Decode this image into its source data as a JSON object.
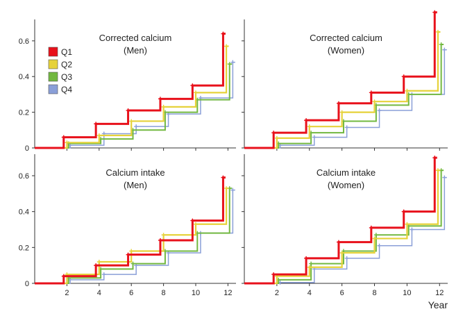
{
  "figure": {
    "xlabel": "Year",
    "legend": [
      {
        "name": "Q1",
        "color": "#e8111b"
      },
      {
        "name": "Q2",
        "color": "#e6d23a"
      },
      {
        "name": "Q3",
        "color": "#72b840"
      },
      {
        "name": "Q4",
        "color": "#8a9fd8"
      }
    ]
  },
  "chart_data": [
    {
      "type": "line",
      "step": true,
      "title": [
        "Corrected calcium",
        "(Men)"
      ],
      "xlabel": "",
      "ylabel": "",
      "xlim": [
        0,
        12.5
      ],
      "ylim": [
        0,
        0.72
      ],
      "xticks": [
        2,
        4,
        6,
        8,
        10,
        12
      ],
      "yticks": [
        0,
        0.2,
        0.4,
        0.6
      ],
      "ytick_labels": [
        "0",
        "0.2",
        "0.4",
        "0.6"
      ],
      "series": [
        {
          "name": "Q1",
          "x": [
            0,
            1.8,
            3.8,
            5.8,
            7.8,
            9.8,
            11.7
          ],
          "y": [
            0,
            0.06,
            0.135,
            0.21,
            0.275,
            0.35,
            0.64
          ]
        },
        {
          "name": "Q2",
          "x": [
            0,
            2.0,
            4.0,
            6.0,
            8.0,
            10.0,
            11.9
          ],
          "y": [
            0,
            0.03,
            0.07,
            0.15,
            0.23,
            0.31,
            0.57
          ]
        },
        {
          "name": "Q3",
          "x": [
            0,
            2.1,
            4.1,
            6.1,
            8.1,
            10.1,
            12.1
          ],
          "y": [
            0,
            0.025,
            0.05,
            0.1,
            0.2,
            0.27,
            0.47
          ]
        },
        {
          "name": "Q4",
          "x": [
            0,
            2.2,
            4.3,
            6.3,
            8.3,
            10.3,
            12.3
          ],
          "y": [
            0,
            0.015,
            0.08,
            0.12,
            0.19,
            0.28,
            0.48
          ]
        }
      ]
    },
    {
      "type": "line",
      "step": true,
      "title": [
        "Corrected calcium",
        "(Women)"
      ],
      "xlabel": "",
      "ylabel": "",
      "xlim": [
        0,
        12.5
      ],
      "ylim": [
        0,
        0.72
      ],
      "xticks": [
        2,
        4,
        6,
        8,
        10,
        12
      ],
      "yticks": [
        0,
        0.2,
        0.4,
        0.6
      ],
      "ytick_labels": [],
      "series": [
        {
          "name": "Q1",
          "x": [
            0,
            1.8,
            3.8,
            5.8,
            7.8,
            9.8,
            11.7
          ],
          "y": [
            0,
            0.085,
            0.155,
            0.25,
            0.31,
            0.4,
            0.76
          ]
        },
        {
          "name": "Q2",
          "x": [
            0,
            2.0,
            4.0,
            6.0,
            8.0,
            10.0,
            11.9
          ],
          "y": [
            0,
            0.055,
            0.12,
            0.2,
            0.26,
            0.32,
            0.65
          ]
        },
        {
          "name": "Q3",
          "x": [
            0,
            2.1,
            4.1,
            6.1,
            8.1,
            10.1,
            12.1
          ],
          "y": [
            0,
            0.025,
            0.085,
            0.15,
            0.24,
            0.3,
            0.58
          ]
        },
        {
          "name": "Q4",
          "x": [
            0,
            2.2,
            4.3,
            6.3,
            8.3,
            10.3,
            12.3
          ],
          "y": [
            0,
            0.015,
            0.06,
            0.115,
            0.21,
            0.3,
            0.55
          ]
        }
      ]
    },
    {
      "type": "line",
      "step": true,
      "title": [
        "Calcium intake",
        "(Men)"
      ],
      "xlabel": "",
      "ylabel": "",
      "xlim": [
        0,
        12.5
      ],
      "ylim": [
        0,
        0.72
      ],
      "xticks": [
        2,
        4,
        6,
        8,
        10,
        12
      ],
      "xtick_labels": [
        "2",
        "4",
        "6",
        "8",
        "10",
        "12"
      ],
      "yticks": [
        0,
        0.2,
        0.4,
        0.6
      ],
      "ytick_labels": [
        "0",
        "0.2",
        "0.4",
        "0.6"
      ],
      "series": [
        {
          "name": "Q1",
          "x": [
            0,
            1.8,
            3.8,
            5.8,
            7.8,
            9.8,
            11.7
          ],
          "y": [
            0,
            0.04,
            0.1,
            0.16,
            0.24,
            0.35,
            0.59
          ]
        },
        {
          "name": "Q2",
          "x": [
            0,
            2.0,
            4.0,
            6.0,
            8.0,
            10.0,
            11.9
          ],
          "y": [
            0,
            0.05,
            0.12,
            0.18,
            0.27,
            0.33,
            0.53
          ]
        },
        {
          "name": "Q3",
          "x": [
            0,
            2.1,
            4.1,
            6.1,
            8.1,
            10.1,
            12.1
          ],
          "y": [
            0,
            0.03,
            0.08,
            0.11,
            0.18,
            0.28,
            0.53
          ]
        },
        {
          "name": "Q4",
          "x": [
            0,
            2.2,
            4.3,
            6.3,
            8.3,
            10.3,
            12.3
          ],
          "y": [
            0,
            0.02,
            0.05,
            0.1,
            0.17,
            0.28,
            0.52
          ]
        }
      ]
    },
    {
      "type": "line",
      "step": true,
      "title": [
        "Calcium intake",
        "(Women)"
      ],
      "xlabel": "",
      "ylabel": "",
      "xlim": [
        0,
        12.5
      ],
      "ylim": [
        0,
        0.72
      ],
      "xticks": [
        2,
        4,
        6,
        8,
        10,
        12
      ],
      "xtick_labels": [
        "2",
        "4",
        "6",
        "8",
        "10",
        "12"
      ],
      "yticks": [
        0,
        0.2,
        0.4,
        0.6
      ],
      "ytick_labels": [],
      "series": [
        {
          "name": "Q1",
          "x": [
            0,
            1.8,
            3.8,
            5.8,
            7.8,
            9.8,
            11.7
          ],
          "y": [
            0,
            0.05,
            0.14,
            0.23,
            0.31,
            0.4,
            0.7
          ]
        },
        {
          "name": "Q2",
          "x": [
            0,
            2.0,
            4.0,
            6.0,
            8.0,
            10.0,
            11.9
          ],
          "y": [
            0,
            0.04,
            0.09,
            0.17,
            0.25,
            0.33,
            0.63
          ]
        },
        {
          "name": "Q3",
          "x": [
            0,
            2.1,
            4.1,
            6.1,
            8.1,
            10.1,
            12.1
          ],
          "y": [
            0,
            0.02,
            0.11,
            0.18,
            0.27,
            0.32,
            0.63
          ]
        },
        {
          "name": "Q4",
          "x": [
            0,
            2.2,
            4.3,
            6.3,
            8.3,
            10.3,
            12.3
          ],
          "y": [
            0,
            0.005,
            0.08,
            0.14,
            0.21,
            0.3,
            0.59
          ]
        }
      ]
    }
  ]
}
